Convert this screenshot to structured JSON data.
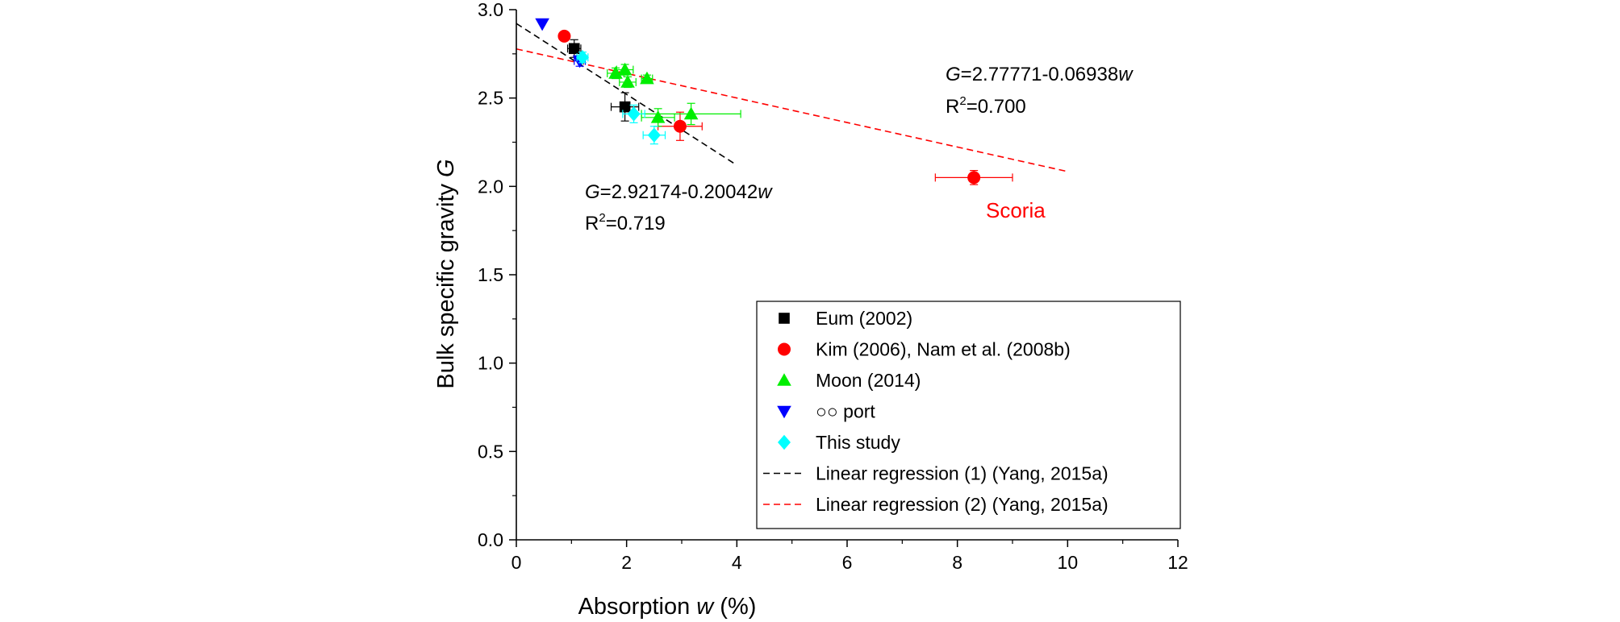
{
  "chart_data": {
    "type": "scatter",
    "xlabel_main": "Absorption ",
    "xlabel_var": "w",
    "xlabel_unit": " (%)",
    "ylabel_main": "Bulk specific gravity ",
    "ylabel_var": "G",
    "xlim": [
      0,
      12
    ],
    "ylim": [
      0.0,
      3.0
    ],
    "x_ticks": [
      "0",
      "2",
      "4",
      "6",
      "8",
      "10",
      "12"
    ],
    "y_ticks": [
      "0.0",
      "0.5",
      "1.0",
      "1.5",
      "2.0",
      "2.5",
      "3.0"
    ],
    "grid": false,
    "legend_position": "bottom-right",
    "series": [
      {
        "name": "Eum (2002)",
        "marker": "square",
        "color": "#000000",
        "points": [
          {
            "x": 1.05,
            "y": 2.78,
            "xerr": 0.12,
            "yerr": 0.05
          },
          {
            "x": 1.97,
            "y": 2.45,
            "xerr": 0.25,
            "yerr": 0.08
          }
        ]
      },
      {
        "name": "Kim (2006), Nam et al. (2008b)",
        "marker": "circle",
        "color": "#ff0000",
        "points": [
          {
            "x": 0.87,
            "y": 2.85,
            "xerr": 0.0,
            "yerr": 0.0
          },
          {
            "x": 2.97,
            "y": 2.34,
            "xerr": 0.4,
            "yerr": 0.08
          },
          {
            "x": 8.3,
            "y": 2.05,
            "xerr": 0.7,
            "yerr": 0.04
          }
        ]
      },
      {
        "name": "Moon (2014)",
        "marker": "triangle-up",
        "color": "#00ee00",
        "points": [
          {
            "x": 1.8,
            "y": 2.64,
            "xerr": 0.15,
            "yerr": 0.03
          },
          {
            "x": 1.97,
            "y": 2.66,
            "xerr": 0.15,
            "yerr": 0.03
          },
          {
            "x": 2.02,
            "y": 2.59,
            "xerr": 0.15,
            "yerr": 0.03
          },
          {
            "x": 2.37,
            "y": 2.61,
            "xerr": 0.1,
            "yerr": 0.02
          },
          {
            "x": 2.57,
            "y": 2.39,
            "xerr": 0.3,
            "yerr": 0.05
          },
          {
            "x": 3.17,
            "y": 2.41,
            "xerr": 0.9,
            "yerr": 0.06
          }
        ]
      },
      {
        "name": "○○ port",
        "marker": "triangle-down",
        "color": "#0000ff",
        "points": [
          {
            "x": 0.47,
            "y": 2.92,
            "xerr": 0.0,
            "yerr": 0.0
          },
          {
            "x": 1.15,
            "y": 2.71,
            "xerr": 0.1,
            "yerr": 0.03
          }
        ]
      },
      {
        "name": "This study",
        "marker": "diamond",
        "color": "#00ffff",
        "points": [
          {
            "x": 1.2,
            "y": 2.73,
            "xerr": 0.1,
            "yerr": 0.03
          },
          {
            "x": 2.13,
            "y": 2.41,
            "xerr": 0.2,
            "yerr": 0.05
          },
          {
            "x": 2.5,
            "y": 2.29,
            "xerr": 0.2,
            "yerr": 0.05
          }
        ]
      }
    ],
    "regressions": [
      {
        "name": "Linear regression (1) (Yang, 2015a)",
        "color": "#000000",
        "intercept": 2.92174,
        "slope": -0.20042,
        "x_range": [
          0,
          4
        ]
      },
      {
        "name": "Linear regression (2) (Yang, 2015a)",
        "color": "#ff0000",
        "intercept": 2.77771,
        "slope": -0.06938,
        "x_range": [
          0,
          10
        ]
      }
    ],
    "annotations": {
      "eq1_var": "G",
      "eq1_rest": "=2.92174-0.20042",
      "eq1_w": "w",
      "r2_1_base": "R",
      "r2_1_sup": "2",
      "r2_1_value": "=0.719",
      "eq2_var": "G",
      "eq2_rest": "=2.77771-0.06938",
      "eq2_w": "w",
      "r2_2_base": "R",
      "r2_2_sup": "2",
      "r2_2_value": "=0.700",
      "scoria": "Scoria",
      "scoria_color": "#ff0000"
    }
  }
}
